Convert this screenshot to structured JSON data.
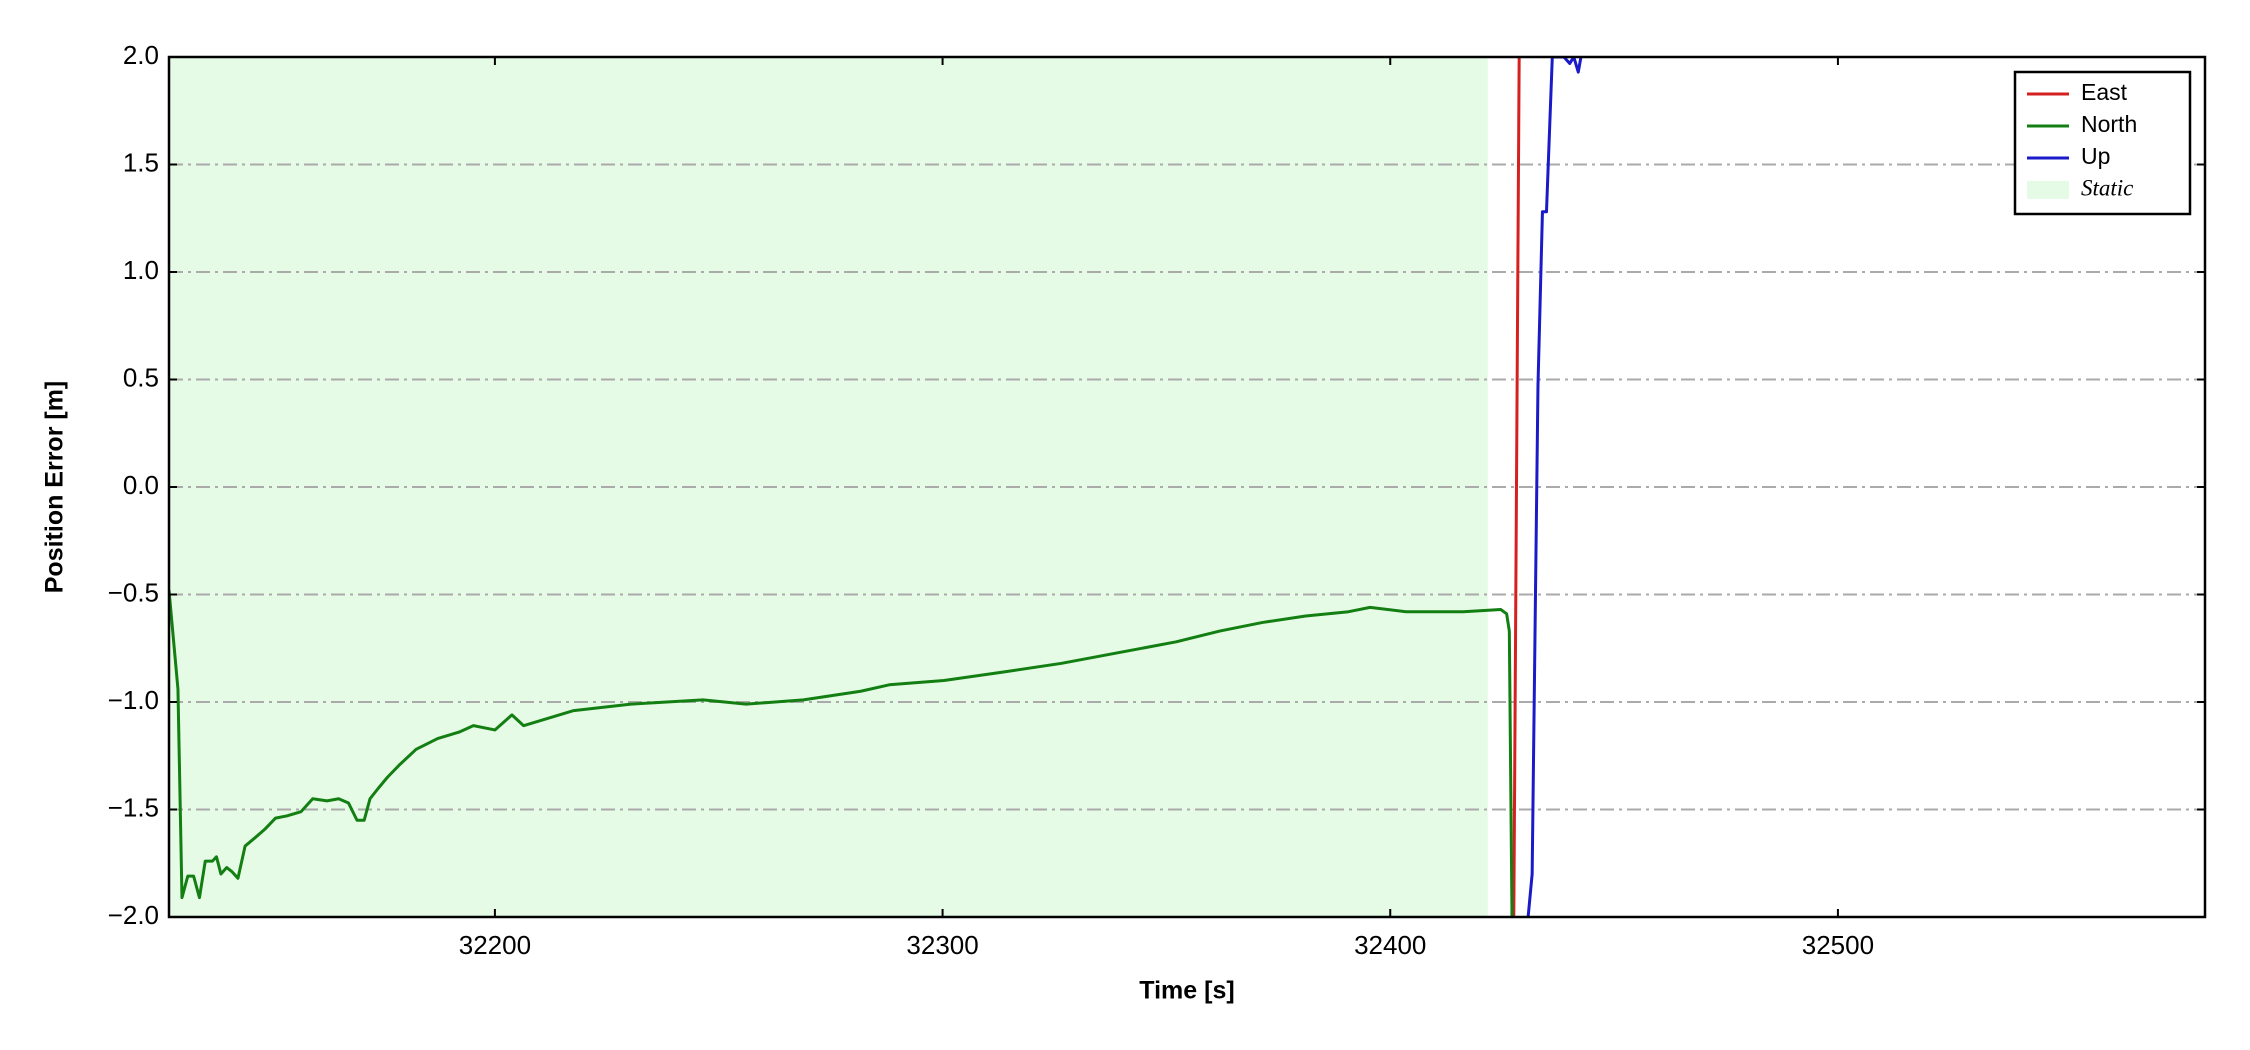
{
  "chart_data": {
    "type": "line",
    "xlabel": "Time [s]",
    "ylabel": "Position Error [m]",
    "xlim": [
      32127.2,
      32582
    ],
    "ylim": [
      -2.0,
      2.0
    ],
    "xticks": [
      32200,
      32300,
      32400,
      32500
    ],
    "yticks": [
      {
        "value": -2.0,
        "label": "−2.0"
      },
      {
        "value": -1.5,
        "label": "−1.5"
      },
      {
        "value": -1.0,
        "label": "−1.0"
      },
      {
        "value": -0.5,
        "label": "−0.5"
      },
      {
        "value": 0.0,
        "label": "0.0"
      },
      0.5,
      {
        "value": 1.0,
        "label": "1.0"
      },
      1.5,
      {
        "value": 2.0,
        "label": "2.0"
      }
    ],
    "grid": true,
    "legend": "upper right",
    "spans": [
      {
        "name": "Static",
        "color": "#e6fbe6",
        "x": [
          32127.2,
          32421.8
        ]
      }
    ],
    "series": [
      {
        "name": "East",
        "color": "#d62020",
        "x": [
          32427.6,
          32428.8
        ],
        "values": [
          -2.0,
          2.0
        ]
      },
      {
        "name": "North",
        "color": "#137f13",
        "x": [
          32127.2,
          32129.2,
          32130.1,
          32131.4,
          32132.7,
          32134.0,
          32135.3,
          32136.9,
          32137.8,
          32138.8,
          32140.1,
          32141.3,
          32142.6,
          32144.2,
          32146.5,
          32148.7,
          32151.0,
          32153.5,
          32156.7,
          32159.3,
          32162.5,
          32165.1,
          32167.3,
          32169.2,
          32170.8,
          32172.1,
          32174.0,
          32176.0,
          32178.8,
          32182.4,
          32187.2,
          32192.0,
          32195.2,
          32200.0,
          32203.8,
          32206.4,
          32217.6,
          32230.4,
          32246.5,
          32256.1,
          32268.9,
          32281.7,
          32288.1,
          32300.3,
          32313.8,
          32326.6,
          32339.4,
          32352.2,
          32361.9,
          32371.5,
          32381.1,
          32390.7,
          32395.5,
          32403.5,
          32409.9,
          32416.3,
          32424.7,
          32426.0,
          32426.6,
          32427.2
        ],
        "values": [
          -0.48,
          -0.94,
          -1.91,
          -1.81,
          -1.81,
          -1.91,
          -1.74,
          -1.74,
          -1.72,
          -1.8,
          -1.77,
          -1.79,
          -1.82,
          -1.67,
          -1.63,
          -1.59,
          -1.54,
          -1.53,
          -1.51,
          -1.45,
          -1.46,
          -1.45,
          -1.47,
          -1.55,
          -1.55,
          -1.45,
          -1.4,
          -1.35,
          -1.29,
          -1.22,
          -1.17,
          -1.14,
          -1.11,
          -1.13,
          -1.06,
          -1.11,
          -1.04,
          -1.01,
          -0.99,
          -1.01,
          -0.99,
          -0.95,
          -0.92,
          -0.9,
          -0.86,
          -0.82,
          -0.77,
          -0.72,
          -0.67,
          -0.63,
          -0.6,
          -0.58,
          -0.56,
          -0.58,
          -0.58,
          -0.58,
          -0.57,
          -0.59,
          -0.67,
          -2.0
        ]
      },
      {
        "name": "Up",
        "color": "#1a1ac8",
        "x": [
          32430.8,
          32431.7,
          32433.0,
          32434.0,
          32434.9,
          32436.2,
          32438.8,
          32440.1,
          32441.0,
          32442.0,
          32442.6
        ],
        "values": [
          -2.0,
          -1.8,
          0.47,
          1.28,
          1.28,
          2.0,
          2.0,
          1.97,
          2.0,
          1.93,
          2.0
        ]
      }
    ]
  }
}
